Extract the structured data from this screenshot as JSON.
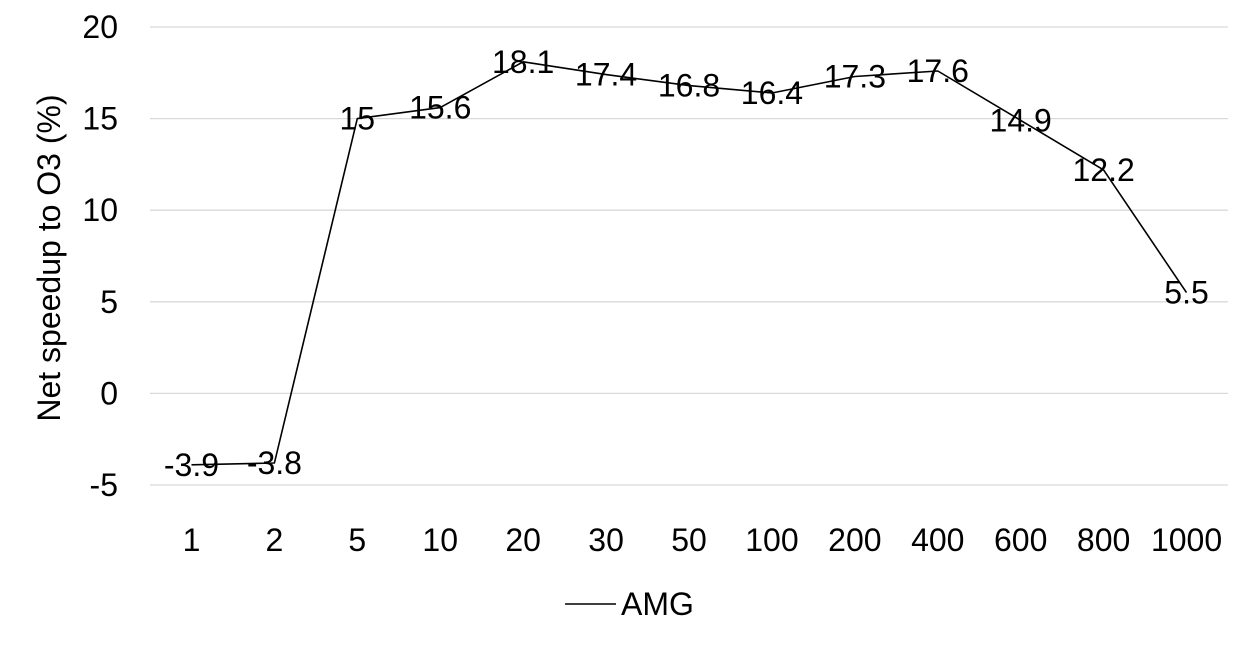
{
  "chart_data": {
    "type": "line",
    "categories": [
      "1",
      "2",
      "5",
      "10",
      "20",
      "30",
      "50",
      "100",
      "200",
      "400",
      "600",
      "800",
      "1000"
    ],
    "series": [
      {
        "name": "AMG",
        "values": [
          -3.9,
          -3.8,
          15,
          15.6,
          18.1,
          17.4,
          16.8,
          16.4,
          17.3,
          17.6,
          14.9,
          12.2,
          5.5
        ],
        "data_labels": [
          "-3.9",
          "-3.8",
          "15",
          "15.6",
          "18.1",
          "17.4",
          "16.8",
          "16.4",
          "17.3",
          "17.6",
          "14.9",
          "12.2",
          "5.5"
        ],
        "color": "#000000"
      }
    ],
    "title": "",
    "xlabel": "",
    "ylabel": "Net speedup to O3 (%)",
    "ylim": [
      -5,
      20
    ],
    "yticks": [
      -5,
      0,
      5,
      10,
      15,
      20
    ],
    "ytick_labels": [
      "-5",
      "0",
      "5",
      "10",
      "15",
      "20"
    ],
    "grid": true,
    "grid_color": "#d9d9d9",
    "legend": {
      "position": "bottom",
      "entries": [
        "AMG"
      ]
    }
  }
}
